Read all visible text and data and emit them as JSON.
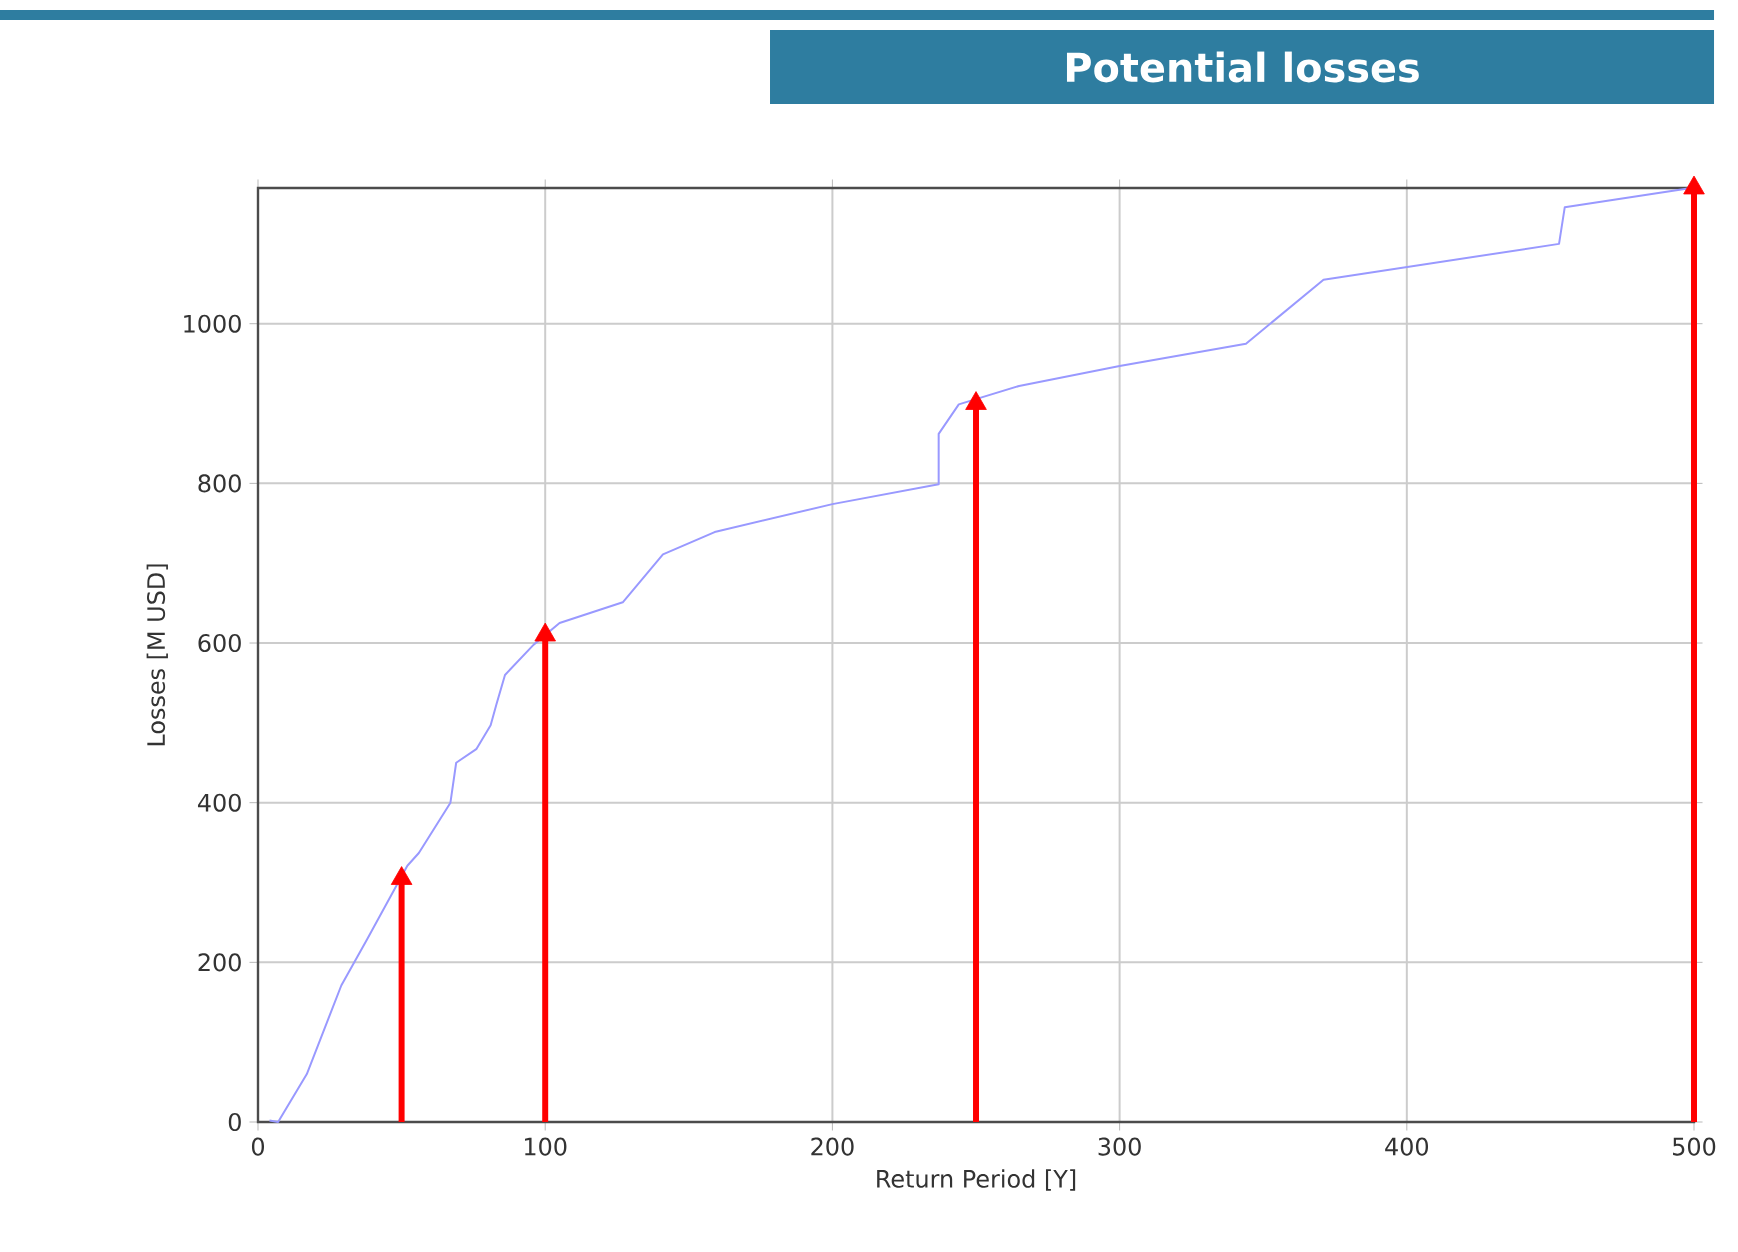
{
  "chart_data": {
    "type": "line",
    "title": "Potential losses",
    "xlabel": "Return Period [Y]",
    "ylabel": "Losses [M USD]",
    "xlim": [
      0,
      500
    ],
    "ylim": [
      0,
      1170
    ],
    "xticks": [
      0,
      100,
      200,
      300,
      400,
      500
    ],
    "yticks": [
      0,
      200,
      400,
      600,
      800,
      1000
    ],
    "grid": true,
    "series": [
      {
        "color": "#9999ff",
        "x": [
          4,
          7,
          17,
          29,
          38,
          52,
          56,
          67,
          69,
          76,
          81,
          83,
          86,
          96,
          105,
          127,
          141,
          159,
          200,
          237,
          237,
          244,
          265,
          300,
          344,
          371,
          453,
          455,
          499
        ],
        "values": [
          2,
          0,
          60,
          171,
          229,
          321,
          337,
          400,
          450,
          467,
          497,
          523,
          560,
          598,
          625,
          651,
          711,
          739,
          774,
          799,
          862,
          899,
          922,
          947,
          975,
          1055,
          1100,
          1146,
          1170
        ]
      },
      {
        "type": "lollipop",
        "marker": "triangle",
        "color": "#ff0000",
        "x": [
          50,
          100,
          250,
          500
        ],
        "values": [
          305,
          610,
          900,
          1170
        ]
      }
    ]
  }
}
